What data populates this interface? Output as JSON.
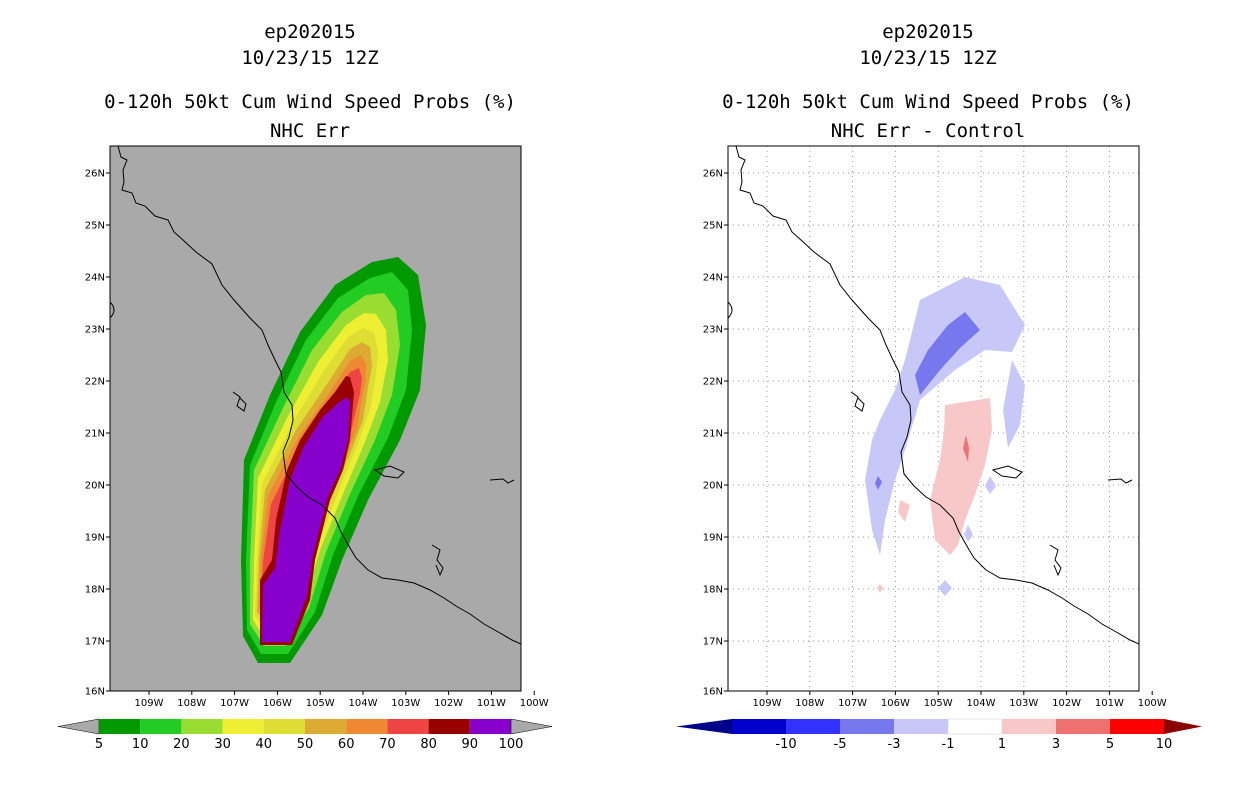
{
  "panels": [
    {
      "storm": "ep202015",
      "datetime": "10/23/15 12Z",
      "product": "0-120h 50kt Cum Wind Speed Probs (%)",
      "subtitle": "NHC Err",
      "lon_ticks": [
        "109W",
        "108W",
        "107W",
        "106W",
        "105W",
        "104W",
        "103W",
        "102W",
        "101W",
        "100W"
      ],
      "lat_ticks": [
        "26N",
        "25N",
        "24N",
        "23N",
        "22N",
        "21N",
        "20N",
        "19N",
        "18N",
        "17N",
        "16N"
      ],
      "colorbar": {
        "labels": [
          "5",
          "10",
          "20",
          "30",
          "40",
          "50",
          "60",
          "70",
          "80",
          "90",
          "100"
        ],
        "colors": [
          "#009900",
          "#22cc22",
          "#99dd33",
          "#eeee33",
          "#dddd33",
          "#ddaa33",
          "#ee8833",
          "#ee4444",
          "#990000",
          "#8800cc"
        ]
      }
    },
    {
      "storm": "ep202015",
      "datetime": "10/23/15 12Z",
      "product": "0-120h 50kt Cum Wind Speed Probs (%)",
      "subtitle": "NHC Err - Control",
      "lon_ticks": [
        "109W",
        "108W",
        "107W",
        "106W",
        "105W",
        "104W",
        "103W",
        "102W",
        "101W",
        "100W"
      ],
      "lat_ticks": [
        "26N",
        "25N",
        "24N",
        "23N",
        "22N",
        "21N",
        "20N",
        "19N",
        "18N",
        "17N",
        "16N"
      ],
      "colorbar": {
        "labels": [
          "-10",
          "-5",
          "-3",
          "-1",
          "1",
          "3",
          "5",
          "10"
        ],
        "colors": [
          "#0000cc",
          "#3333ff",
          "#7777ee",
          "#c8c8f8",
          "#ffffff",
          "#f8c8c8",
          "#ee7070",
          "#ff0000",
          "#880000",
          "#000088"
        ]
      }
    }
  ]
}
